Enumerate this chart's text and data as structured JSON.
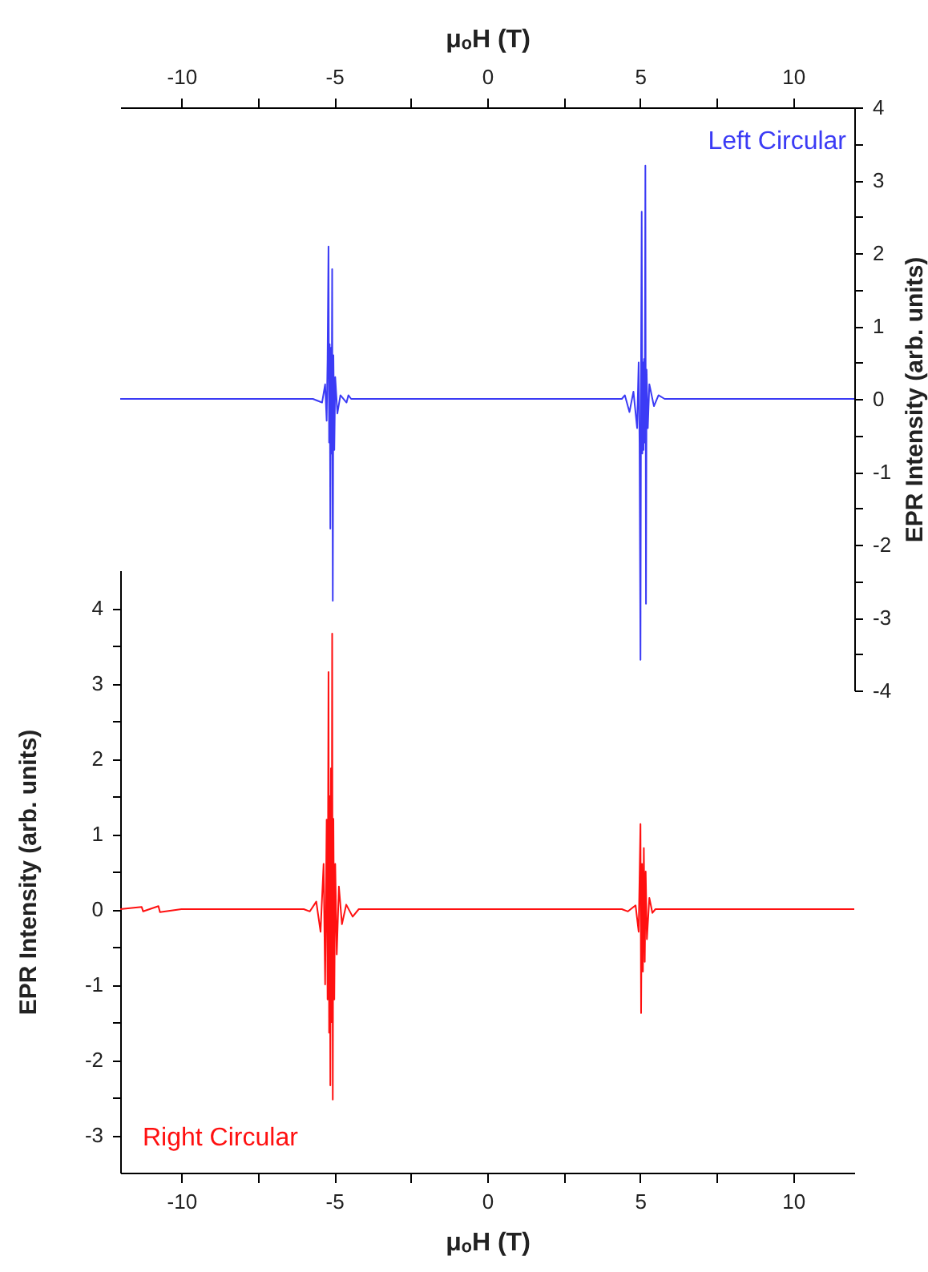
{
  "chart_data": [
    {
      "type": "line",
      "xlabel": "μₒH (T)",
      "ylabel": "EPR Intensity (arb. units)",
      "xlim": [
        -12,
        12
      ],
      "xticks": [
        -10,
        {
          "value": -7.5,
          "label": null
        },
        -5,
        {
          "value": -2.5,
          "label": null
        },
        0,
        {
          "value": 2.5,
          "label": null
        },
        5,
        {
          "value": 7.5,
          "label": null
        },
        10
      ],
      "ylim": [
        -4,
        4
      ],
      "yticks": [
        -4,
        {
          "value": -3.5,
          "label": null
        },
        -3,
        {
          "value": -2.5,
          "label": null
        },
        -2,
        {
          "value": -1.5,
          "label": null
        },
        -1,
        {
          "value": -0.5,
          "label": null
        },
        0,
        {
          "value": 0.5,
          "label": null
        },
        1,
        {
          "value": 1.5,
          "label": null
        },
        2,
        {
          "value": 2.5,
          "label": null
        },
        3,
        {
          "value": 3.5,
          "label": null
        },
        4
      ],
      "series": [
        {
          "name": "Left Circular",
          "color": "#3b3bf5",
          "x": [
            -12,
            -7,
            -5.7,
            -5.4,
            -5.3,
            -5.25,
            -5.22,
            -5.19,
            -5.17,
            -5.15,
            -5.13,
            -5.11,
            -5.09,
            -5.07,
            -5.05,
            -5.03,
            -5.0,
            -4.97,
            -4.9,
            -4.8,
            -4.6,
            -4.54,
            -4.45,
            0,
            4.4,
            4.5,
            4.65,
            4.78,
            4.9,
            4.95,
            4.98,
            5.01,
            5.03,
            5.05,
            5.07,
            5.09,
            5.11,
            5.13,
            5.15,
            5.17,
            5.19,
            5.21,
            5.25,
            5.3,
            5.45,
            5.6,
            5.8,
            12
          ],
          "values": [
            0,
            0,
            0,
            -0.05,
            0.2,
            -0.3,
            0.55,
            2.09,
            -0.6,
            0.75,
            -1.78,
            0.7,
            -0.75,
            1.78,
            -2.77,
            0.6,
            -0.7,
            0.3,
            -0.2,
            0.05,
            -0.05,
            0.05,
            0,
            0,
            0,
            0.05,
            -0.18,
            0.1,
            -0.4,
            0.5,
            -0.6,
            -3.58,
            0.57,
            2.57,
            -0.75,
            0.5,
            -0.7,
            0.55,
            -0.6,
            3.2,
            -2.81,
            0.4,
            -0.4,
            0.2,
            -0.1,
            0.05,
            0,
            0
          ]
        }
      ]
    },
    {
      "type": "line",
      "xlabel": "μₒH (T)",
      "ylabel": "EPR Intensity (arb. units)",
      "xlim": [
        -12,
        12
      ],
      "xticks": [
        -10,
        {
          "value": -7.5,
          "label": null
        },
        -5,
        {
          "value": -2.5,
          "label": null
        },
        0,
        {
          "value": 2.5,
          "label": null
        },
        5,
        {
          "value": 7.5,
          "label": null
        },
        10
      ],
      "ylim": [
        -3.5,
        4.5
      ],
      "yticks": [
        -3,
        {
          "value": -2.5,
          "label": null
        },
        -2,
        {
          "value": -1.5,
          "label": null
        },
        -1,
        {
          "value": -0.5,
          "label": null
        },
        0,
        {
          "value": 0.5,
          "label": null
        },
        1,
        {
          "value": 1.5,
          "label": null
        },
        2,
        {
          "value": 2.5,
          "label": null
        },
        3,
        {
          "value": 3.5,
          "label": null
        },
        4
      ],
      "series": [
        {
          "name": "Right Circular",
          "color": "#ff1010",
          "x": [
            -12,
            -11.3,
            -11.25,
            -10.75,
            -10.7,
            -10,
            -6,
            -5.8,
            -5.59,
            -5.45,
            -5.35,
            -5.3,
            -5.25,
            -5.22,
            -5.19,
            -5.17,
            -5.15,
            -5.13,
            -5.11,
            -5.09,
            -5.07,
            -5.05,
            -5.03,
            -5.0,
            -4.97,
            -4.92,
            -4.85,
            -4.75,
            -4.61,
            -4.4,
            -4.2,
            4.4,
            4.6,
            4.85,
            4.95,
            4.98,
            5.01,
            5.03,
            5.06,
            5.09,
            5.12,
            5.15,
            5.18,
            5.22,
            5.3,
            5.4,
            5.5,
            12
          ],
          "values": [
            0,
            0.03,
            -0.03,
            0.04,
            -0.04,
            0,
            0,
            -0.03,
            0.1,
            -0.3,
            0.6,
            -1.0,
            1.19,
            -1.2,
            3.15,
            -1.64,
            1.5,
            -2.34,
            1.87,
            -1.5,
            3.66,
            -2.53,
            1.2,
            -1.2,
            0.6,
            -0.6,
            0.3,
            -0.2,
            0.06,
            -0.1,
            0,
            0,
            -0.03,
            0.05,
            -0.3,
            0.4,
            1.13,
            -1.38,
            0.6,
            -0.83,
            0.81,
            -0.7,
            0.5,
            -0.4,
            0.15,
            -0.05,
            0,
            0
          ]
        }
      ]
    }
  ]
}
